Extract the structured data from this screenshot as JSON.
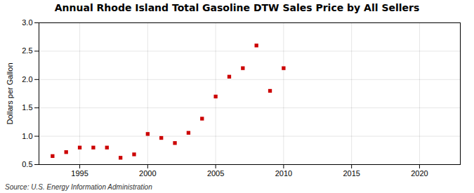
{
  "chart_data": {
    "type": "scatter",
    "title": "Annual Rhode Island Total Gasoline DTW Sales Price by All Sellers",
    "ylabel": "Dollars per Gallon",
    "source": "Source: U.S. Energy Information Administration",
    "x": [
      1993,
      1994,
      1995,
      1996,
      1997,
      1998,
      1999,
      2000,
      2001,
      2002,
      2003,
      2004,
      2005,
      2006,
      2007,
      2008,
      2009,
      2010
    ],
    "values": [
      0.65,
      0.72,
      0.8,
      0.8,
      0.8,
      0.62,
      0.68,
      1.04,
      0.97,
      0.88,
      1.06,
      1.31,
      1.7,
      2.05,
      2.2,
      2.6,
      1.8,
      2.2
    ],
    "color": "#CC0000",
    "marker": "square",
    "xlim": [
      1992,
      2023
    ],
    "ylim": [
      0.5,
      3.0
    ],
    "xticks": [
      1995,
      2000,
      2005,
      2010,
      2015,
      2020
    ],
    "yticks": [
      0.5,
      {
        "value": 1.0,
        "label": "1.0"
      },
      1.5,
      {
        "value": 2.0,
        "label": "2.0"
      },
      2.5,
      {
        "value": 3.0,
        "label": "3.0"
      }
    ],
    "grid": true
  }
}
